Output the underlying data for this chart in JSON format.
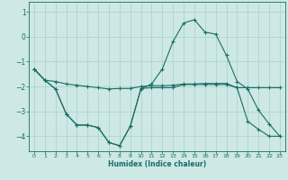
{
  "title": "",
  "xlabel": "Humidex (Indice chaleur)",
  "background_color": "#cde8e5",
  "grid_color": "#aacfcc",
  "line_color": "#1a6e65",
  "xlim": [
    -0.5,
    23.5
  ],
  "ylim": [
    -4.6,
    1.4
  ],
  "yticks": [
    1,
    0,
    -1,
    -2,
    -3,
    -4
  ],
  "xticks": [
    0,
    1,
    2,
    3,
    4,
    5,
    6,
    7,
    8,
    9,
    10,
    11,
    12,
    13,
    14,
    15,
    16,
    17,
    18,
    19,
    20,
    21,
    22,
    23
  ],
  "line1_x": [
    0,
    1,
    2,
    3,
    4,
    5,
    6,
    7,
    8,
    9,
    10,
    11,
    12,
    13,
    14,
    15,
    16,
    17,
    18,
    19,
    20,
    21,
    22,
    23
  ],
  "line1_y": [
    -1.3,
    -1.75,
    -1.8,
    -1.9,
    -1.95,
    -2.0,
    -2.05,
    -2.1,
    -2.08,
    -2.08,
    -2.0,
    -1.97,
    -1.97,
    -1.95,
    -1.9,
    -1.9,
    -1.88,
    -1.88,
    -1.88,
    -2.05,
    -2.05,
    -2.05,
    -2.05,
    -2.05
  ],
  "line2_x": [
    0,
    1,
    2,
    3,
    4,
    5,
    6,
    7,
    8,
    9,
    10,
    11,
    12,
    13,
    14,
    15,
    16,
    17,
    18,
    19,
    20,
    21,
    22,
    23
  ],
  "line2_y": [
    -1.3,
    -1.75,
    -2.1,
    -3.1,
    -3.55,
    -3.55,
    -3.65,
    -4.25,
    -4.38,
    -3.6,
    -2.1,
    -1.9,
    -1.3,
    -0.2,
    0.55,
    0.68,
    0.18,
    0.1,
    -0.75,
    -1.8,
    -2.1,
    -2.95,
    -3.5,
    -4.0
  ],
  "line3_x": [
    0,
    1,
    2,
    3,
    4,
    5,
    6,
    7,
    8,
    9,
    10,
    11,
    12,
    13,
    14,
    15,
    16,
    17,
    18,
    19,
    20,
    21,
    22,
    23
  ],
  "line3_y": [
    -1.3,
    -1.75,
    -2.1,
    -3.1,
    -3.55,
    -3.55,
    -3.65,
    -4.25,
    -4.38,
    -3.6,
    -2.08,
    -2.05,
    -2.05,
    -2.05,
    -1.92,
    -1.92,
    -1.92,
    -1.92,
    -1.92,
    -2.05,
    -3.4,
    -3.72,
    -4.0,
    -4.0
  ]
}
